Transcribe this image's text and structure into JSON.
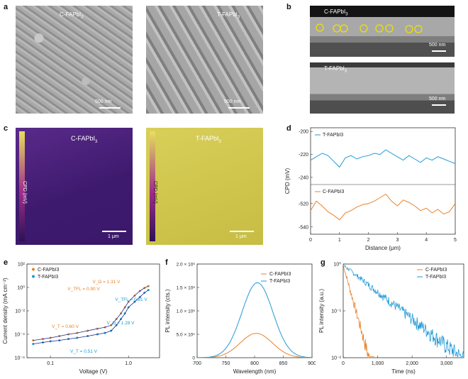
{
  "panels": {
    "a": {
      "label": "a",
      "left_title": "C-FAPbI",
      "right_title": "T-FAPbI",
      "subscript": "3",
      "scale_left": "500 nm",
      "scale_right": "500 nm"
    },
    "b": {
      "label": "b",
      "top_title": "C-FAPbI",
      "bottom_title": "T-FAPbI",
      "subscript": "3",
      "scale_top": "500 nm",
      "scale_bottom": "500 nm"
    },
    "c": {
      "label": "c",
      "left_title": "C-FAPbI",
      "right_title": "T-FAPbI",
      "subscript": "3",
      "cbar_label": "CPD (mV)",
      "scale_left": "1 μm",
      "scale_right": "1 μm"
    },
    "d": {
      "label": "d"
    },
    "e": {
      "label": "e"
    },
    "f": {
      "label": "f"
    },
    "g": {
      "label": "g"
    }
  },
  "colors": {
    "c_series": "#e8822a",
    "t_series": "#1f9ad6",
    "fit": "#1a2a8c"
  },
  "chart_data": [
    {
      "panel": "d",
      "type": "line",
      "xlabel": "Distance (μm)",
      "ylabel": "CPD (mV)",
      "x_ticks": [
        "0",
        "1",
        "2",
        "3",
        "4",
        "5"
      ],
      "xlim": [
        0,
        5
      ],
      "series": [
        {
          "name": "T-FAPbI3",
          "ylim": [
            -245,
            -198
          ],
          "y_ticks": [
            "-200",
            "-220",
            "-240"
          ],
          "x": [
            0,
            0.2,
            0.4,
            0.6,
            0.8,
            1.0,
            1.2,
            1.4,
            1.6,
            1.8,
            2.0,
            2.2,
            2.4,
            2.6,
            2.8,
            3.0,
            3.2,
            3.4,
            3.6,
            3.8,
            4.0,
            4.2,
            4.4,
            4.6,
            4.8,
            5.0
          ],
          "y": [
            -225,
            -222,
            -219,
            -221,
            -226,
            -231,
            -223,
            -221,
            -224,
            -222,
            -221,
            -219,
            -220,
            -216,
            -219,
            -222,
            -225,
            -221,
            -224,
            -227,
            -223,
            -225,
            -222,
            -224,
            -226,
            -228
          ]
        },
        {
          "name": "C-FAPbI3",
          "ylim": [
            -545,
            -505
          ],
          "y_ticks": [
            "-520",
            "-540"
          ],
          "x": [
            0,
            0.2,
            0.4,
            0.6,
            0.8,
            1.0,
            1.2,
            1.4,
            1.6,
            1.8,
            2.0,
            2.2,
            2.4,
            2.6,
            2.8,
            3.0,
            3.2,
            3.4,
            3.6,
            3.8,
            4.0,
            4.2,
            4.4,
            4.6,
            4.8,
            5.0
          ],
          "y": [
            -526,
            -518,
            -522,
            -527,
            -530,
            -534,
            -528,
            -526,
            -523,
            -521,
            -520,
            -518,
            -515,
            -512,
            -518,
            -522,
            -517,
            -519,
            -522,
            -526,
            -524,
            -528,
            -525,
            -529,
            -527,
            -520
          ]
        }
      ]
    },
    {
      "panel": "e",
      "type": "scatter",
      "xlabel": "Voltage (V)",
      "ylabel": "Current density (mA cm⁻²)",
      "x_scale": "log",
      "y_scale": "log",
      "xlim": [
        0.05,
        2.5
      ],
      "ylim": [
        1e-06,
        100
      ],
      "x_ticks": [
        "0.1",
        "1.0"
      ],
      "y_ticks": [
        "10²",
        "10⁰",
        "10⁻²",
        "10⁻⁴",
        "10⁻⁶"
      ],
      "annotations": [
        "V_TFL = 0.90 V",
        "V_TFL = 0.81 V",
        "V_T = 0.60 V",
        "V_T = 0.51 V",
        "V_Ω = 1.31 V",
        "V_Ω = 1.28 V"
      ],
      "series": [
        {
          "name": "C-FAPbI3",
          "x": [
            0.06,
            0.08,
            0.1,
            0.13,
            0.17,
            0.22,
            0.3,
            0.4,
            0.5,
            0.6,
            0.7,
            0.8,
            0.9,
            1.0,
            1.2,
            1.4,
            1.6,
            1.8
          ],
          "y": [
            3e-05,
            4e-05,
            5e-05,
            7e-05,
            0.0001,
            0.00013,
            0.0002,
            0.0003,
            0.0004,
            0.0006,
            0.002,
            0.006,
            0.02,
            0.06,
            0.2,
            0.5,
            0.9,
            1.3
          ]
        },
        {
          "name": "T-FAPbI3",
          "x": [
            0.06,
            0.08,
            0.1,
            0.13,
            0.17,
            0.22,
            0.3,
            0.4,
            0.5,
            0.6,
            0.7,
            0.8,
            0.9,
            1.0,
            1.2,
            1.4,
            1.6,
            1.8
          ],
          "y": [
            1.5e-05,
            2e-05,
            2.5e-05,
            3e-05,
            4e-05,
            5e-05,
            7e-05,
            0.0001,
            0.00013,
            0.0002,
            0.0006,
            0.002,
            0.006,
            0.02,
            0.06,
            0.15,
            0.35,
            0.6
          ]
        }
      ]
    },
    {
      "panel": "f",
      "type": "line",
      "xlabel": "Wavelength (nm)",
      "ylabel": "PL intensity (cts.)",
      "xlim": [
        700,
        900
      ],
      "ylim": [
        0,
        2000000
      ],
      "x_ticks": [
        "700",
        "750",
        "800",
        "850",
        "900"
      ],
      "y_ticks": [
        "0",
        "5.0 × 10⁵",
        "1.0 × 10⁶",
        "1.5 × 10⁶",
        "2.0 × 10⁶"
      ],
      "series": [
        {
          "name": "C-FAPbI3",
          "peak_x": 803,
          "peak_y": 520000,
          "width": 28
        },
        {
          "name": "T-FAPbI3",
          "peak_x": 805,
          "peak_y": 1600000,
          "width": 27
        }
      ]
    },
    {
      "panel": "g",
      "type": "line",
      "xlabel": "Time (ns)",
      "ylabel": "PL intensity (a.u.)",
      "y_scale": "log",
      "xlim": [
        0,
        3500
      ],
      "ylim": [
        0.01,
        1
      ],
      "x_ticks": [
        "0",
        "1,000",
        "2,000",
        "3,000"
      ],
      "y_ticks": [
        "10⁰",
        "10⁻¹",
        "10⁻²"
      ],
      "series": [
        {
          "name": "C-FAPbI3",
          "tau": 165,
          "end_x": 900
        },
        {
          "name": "T-FAPbI3",
          "tau": 760,
          "end_x": 3500
        }
      ]
    }
  ]
}
